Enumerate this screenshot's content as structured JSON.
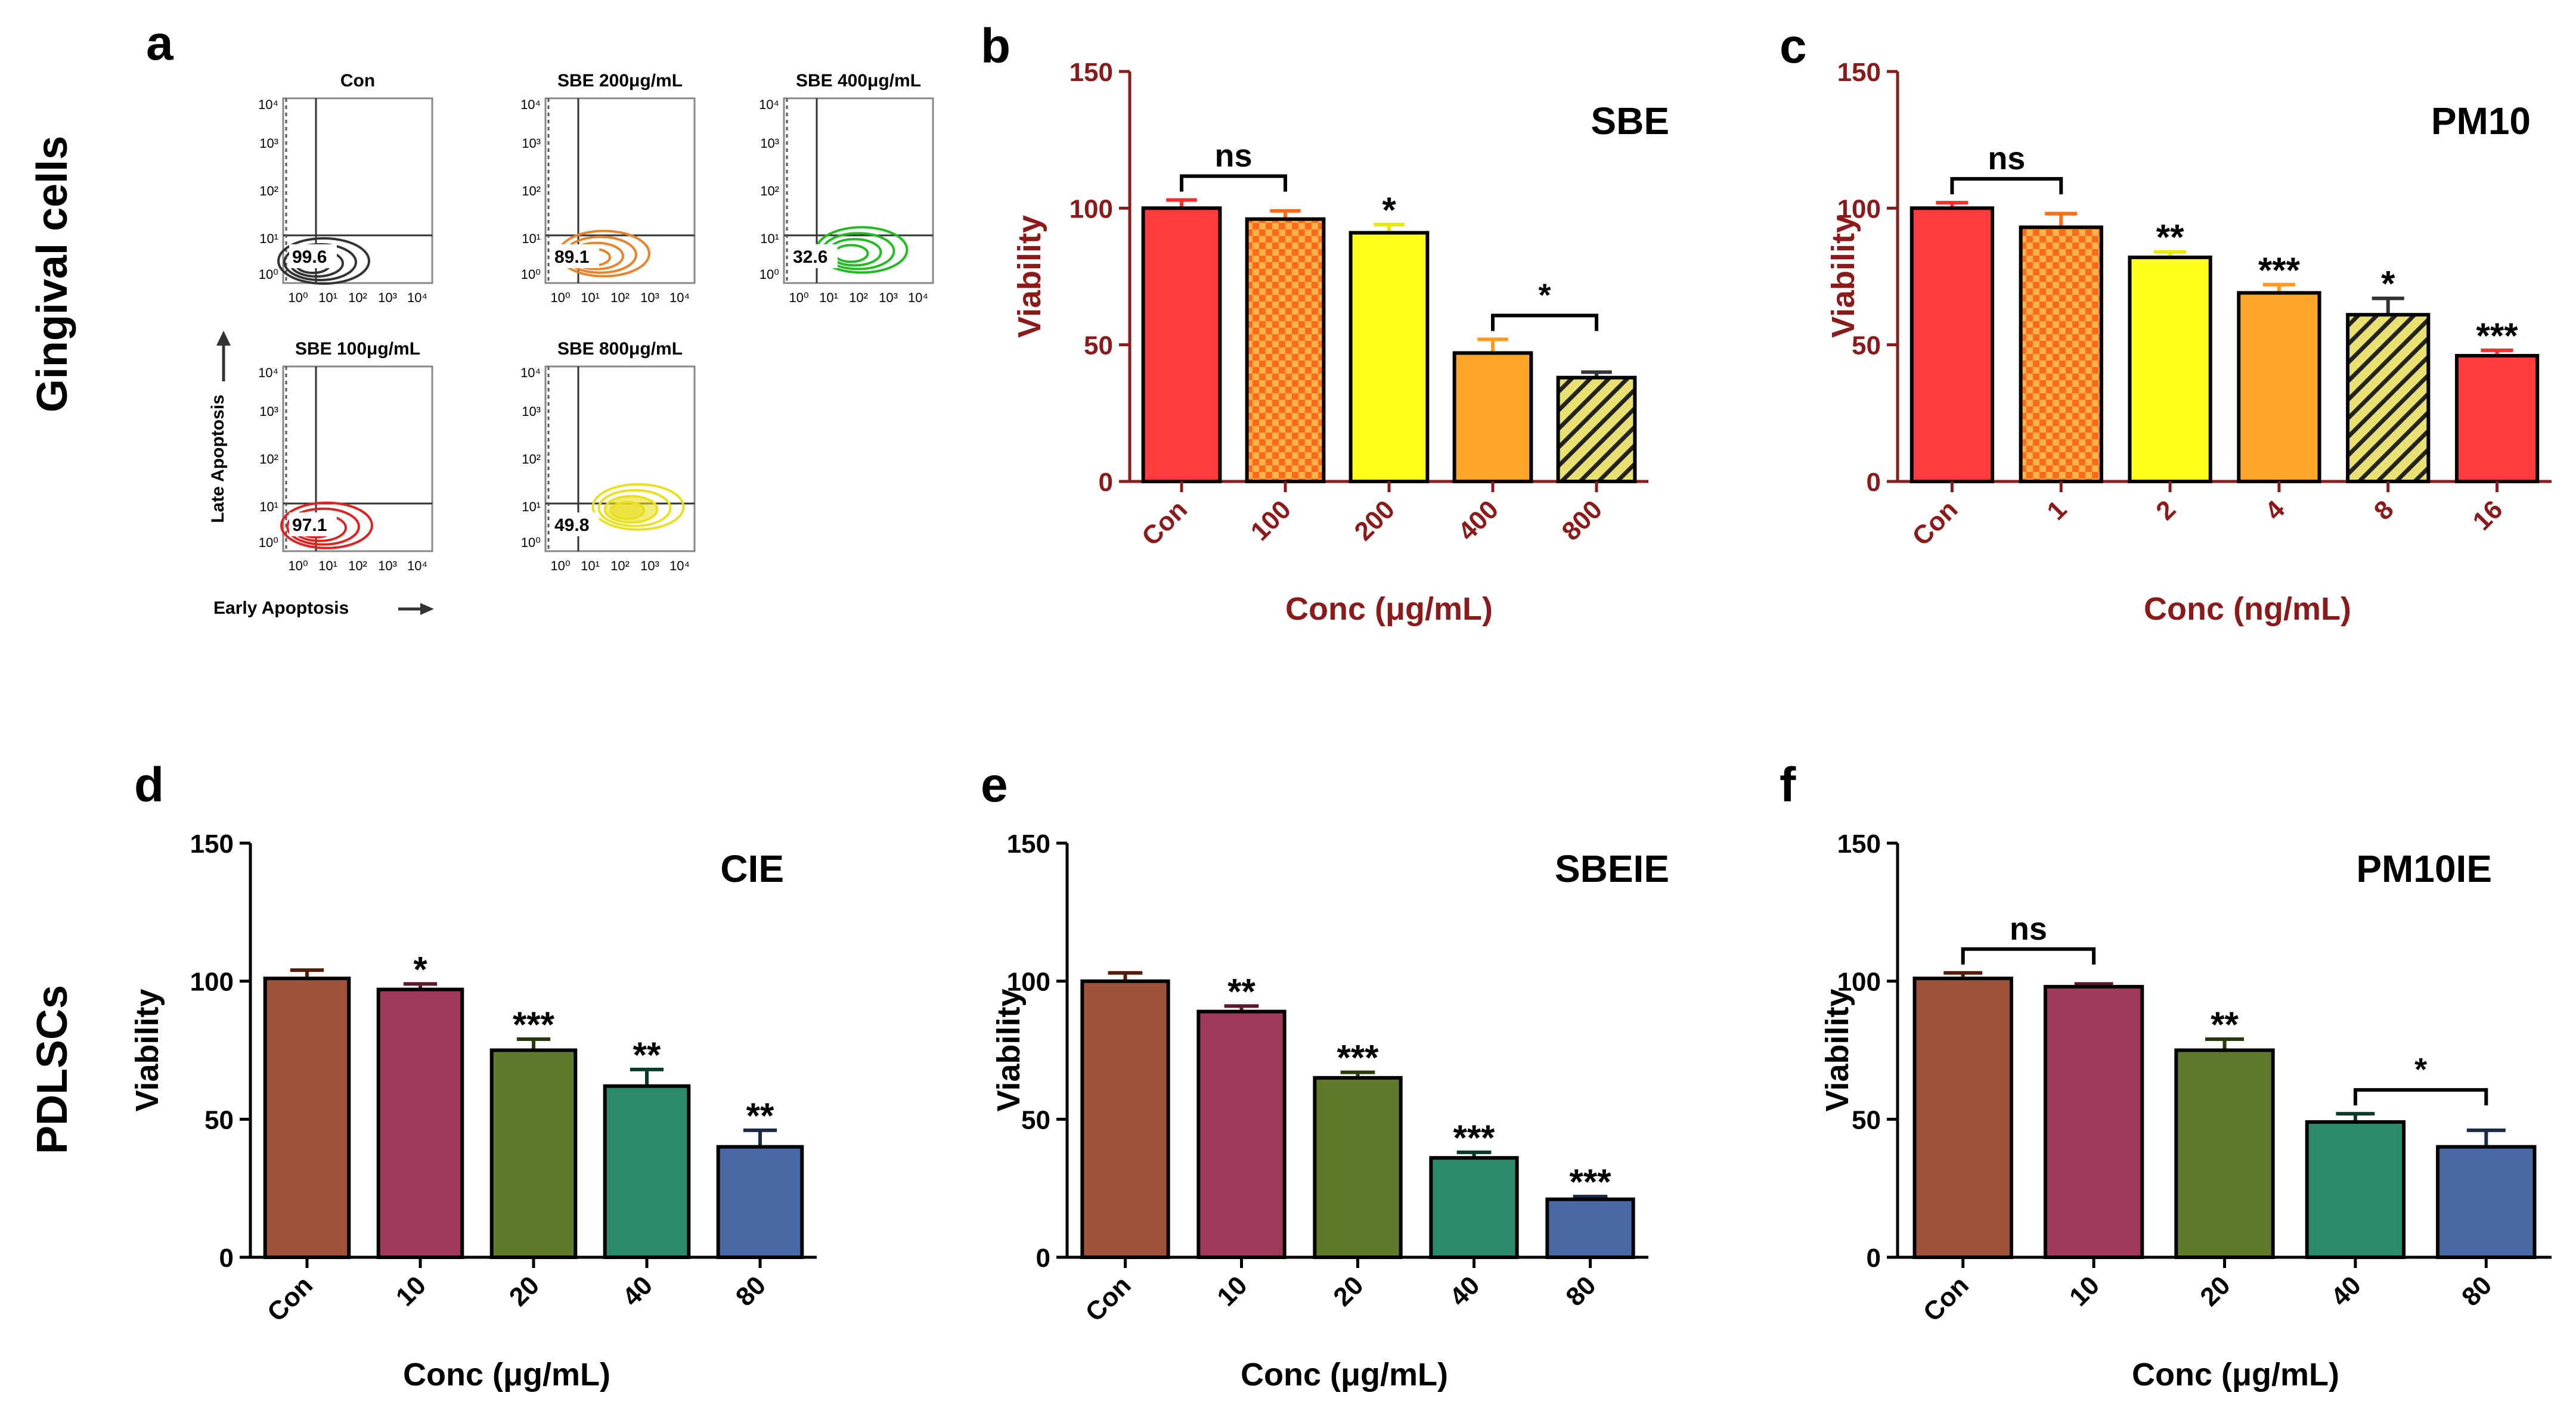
{
  "row_labels": {
    "top": "Gingival cells",
    "bottom": "PDLSCs"
  },
  "flow_panel": {
    "letter": "a",
    "y_axis_label": "Late Apoptosis",
    "x_axis_label": "Early Apoptosis",
    "tick_labels": [
      "10⁰",
      "10¹",
      "10²",
      "10³",
      "10⁴"
    ],
    "plots": [
      {
        "title": "Con",
        "value": "99.6",
        "color": "#333333"
      },
      {
        "title": "SBE  200μg/mL",
        "value": "89.1",
        "color": "#e8832a"
      },
      {
        "title": "SBE  400μg/mL",
        "value": "32.6",
        "color": "#22bb22"
      },
      {
        "title": "SBE  100μg/mL",
        "value": "97.1",
        "color": "#dd2222"
      },
      {
        "title": "SBE  800μg/mL",
        "value": "49.8",
        "color": "#e8e020"
      }
    ]
  },
  "chart_data": [
    {
      "letter": "b",
      "type": "bar",
      "title": "SBE",
      "xlabel": "Conc (μg/mL)",
      "ylabel": "Viability",
      "ylim": [
        0,
        150
      ],
      "yticks": [
        0,
        50,
        100,
        150
      ],
      "axis_color": "#8b1a1a",
      "categories": [
        "Con",
        "100",
        "200",
        "400",
        "800"
      ],
      "values": [
        100,
        96,
        91,
        47,
        38
      ],
      "errors": [
        3,
        3,
        3,
        5,
        2
      ],
      "err_colors": [
        "#ff2e2e",
        "#ff6a1a",
        "#e8e800",
        "#ff9a1a",
        "#333333"
      ],
      "colors": [
        "#ff3b3b",
        "#ff6a1a",
        "#ffff1a",
        "#ffa52a",
        "#e8e070"
      ],
      "patterns": [
        "none",
        "check",
        "none",
        "none",
        "hatch"
      ],
      "stars": [
        "",
        "",
        "*",
        "",
        ""
      ],
      "brackets": [
        {
          "from": 0,
          "to": 1,
          "label": "ns"
        },
        {
          "from": 3,
          "to": 4,
          "label": "*"
        }
      ]
    },
    {
      "letter": "c",
      "type": "bar",
      "title": "PM10",
      "xlabel": "Conc (ng/mL)",
      "ylabel": "Viability",
      "ylim": [
        0,
        150
      ],
      "yticks": [
        0,
        50,
        100,
        150
      ],
      "axis_color": "#8b1a1a",
      "categories": [
        "Con",
        "1",
        "2",
        "4",
        "8",
        "16"
      ],
      "values": [
        100,
        93,
        82,
        69,
        61,
        46
      ],
      "errors": [
        2,
        5,
        2,
        3,
        6,
        2
      ],
      "err_colors": [
        "#ff2e2e",
        "#ff6a1a",
        "#e8e800",
        "#ff9a1a",
        "#333333",
        "#ff2e2e"
      ],
      "colors": [
        "#ff3b3b",
        "#ff6a1a",
        "#ffff1a",
        "#ffa52a",
        "#e8e070",
        "#ff3b3b"
      ],
      "patterns": [
        "none",
        "check",
        "none",
        "none",
        "hatch",
        "none"
      ],
      "stars": [
        "",
        "",
        "**",
        "***",
        "*",
        "***"
      ],
      "brackets": [
        {
          "from": 0,
          "to": 1,
          "label": "ns"
        }
      ]
    },
    {
      "letter": "d",
      "type": "bar",
      "title": "CIE",
      "xlabel": "Conc (μg/mL)",
      "ylabel": "Viability",
      "ylim": [
        0,
        150
      ],
      "yticks": [
        0,
        50,
        100,
        150
      ],
      "axis_color": "#000000",
      "categories": [
        "Con",
        "10",
        "20",
        "40",
        "80"
      ],
      "values": [
        101,
        97,
        75,
        62,
        40
      ],
      "errors": [
        3,
        2,
        4,
        6,
        6
      ],
      "err_colors": [
        "#5a1a0a",
        "#5a1a2a",
        "#2a3a0a",
        "#0a3a2a",
        "#1a2a4a"
      ],
      "colors": [
        "#a0533a",
        "#a03a5a",
        "#5f7a2a",
        "#2a8a6a",
        "#4a6aa5"
      ],
      "patterns": [
        "none",
        "none",
        "none",
        "none",
        "none"
      ],
      "stars": [
        "",
        "*",
        "***",
        "**",
        "**"
      ],
      "brackets": []
    },
    {
      "letter": "e",
      "type": "bar",
      "title": "SBEIE",
      "xlabel": "Conc (μg/mL)",
      "ylabel": "Viability",
      "ylim": [
        0,
        150
      ],
      "yticks": [
        0,
        50,
        100,
        150
      ],
      "axis_color": "#000000",
      "categories": [
        "Con",
        "10",
        "20",
        "40",
        "80"
      ],
      "values": [
        100,
        89,
        65,
        36,
        21
      ],
      "errors": [
        3,
        2,
        2,
        2,
        1
      ],
      "err_colors": [
        "#5a1a0a",
        "#5a1a2a",
        "#2a3a0a",
        "#0a3a2a",
        "#1a2a4a"
      ],
      "colors": [
        "#a0533a",
        "#a03a5a",
        "#5f7a2a",
        "#2a8a6a",
        "#4a6aa5"
      ],
      "patterns": [
        "none",
        "none",
        "none",
        "none",
        "none"
      ],
      "stars": [
        "",
        "**",
        "***",
        "***",
        "***"
      ],
      "brackets": []
    },
    {
      "letter": "f",
      "type": "bar",
      "title": "PM10IE",
      "xlabel": "Conc (μg/mL)",
      "ylabel": "Viability",
      "ylim": [
        0,
        150
      ],
      "yticks": [
        0,
        50,
        100,
        150
      ],
      "axis_color": "#000000",
      "categories": [
        "Con",
        "10",
        "20",
        "40",
        "80"
      ],
      "values": [
        101,
        98,
        75,
        49,
        40
      ],
      "errors": [
        2,
        1,
        4,
        3,
        6
      ],
      "err_colors": [
        "#5a1a0a",
        "#5a1a2a",
        "#2a3a0a",
        "#0a3a2a",
        "#1a2a4a"
      ],
      "colors": [
        "#a0533a",
        "#a03a5a",
        "#5f7a2a",
        "#2a8a6a",
        "#4a6aa5"
      ],
      "patterns": [
        "none",
        "none",
        "none",
        "none",
        "none"
      ],
      "stars": [
        "",
        "",
        "**",
        "",
        ""
      ],
      "brackets": [
        {
          "from": 0,
          "to": 1,
          "label": "ns"
        },
        {
          "from": 3,
          "to": 4,
          "label": "*"
        }
      ]
    }
  ]
}
